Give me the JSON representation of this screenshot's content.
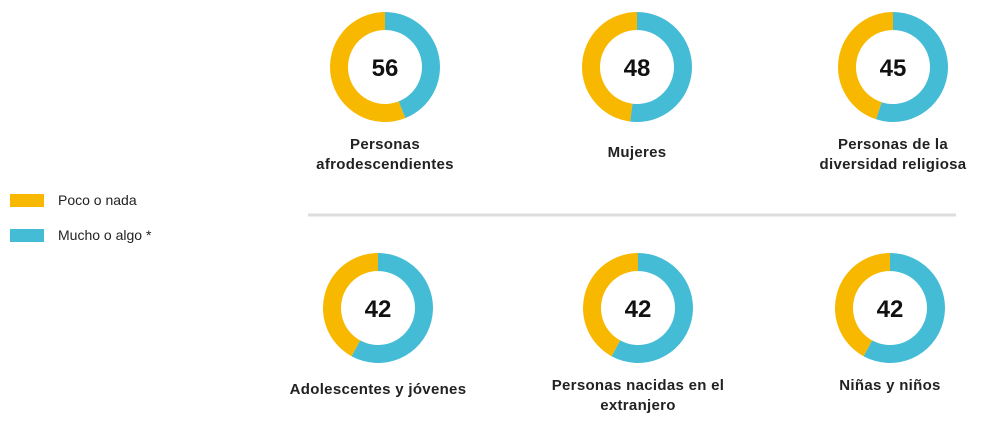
{
  "chart_data": {
    "type": "donut",
    "categories": [
      "Personas afrodescendientes",
      "Mujeres",
      "Personas de la diversidad religiosa",
      "Adolescentes y jóvenes",
      "Personas nacidas en el extranjero",
      "Niñas y niños"
    ],
    "series": [
      {
        "name": "Poco o nada",
        "color": "#f9b800",
        "values": [
          56,
          48,
          45,
          42,
          42,
          42
        ]
      },
      {
        "name": "Mucho o algo *",
        "color": "#45bcd6",
        "values": [
          44,
          52,
          55,
          58,
          58,
          58
        ]
      }
    ]
  }
}
